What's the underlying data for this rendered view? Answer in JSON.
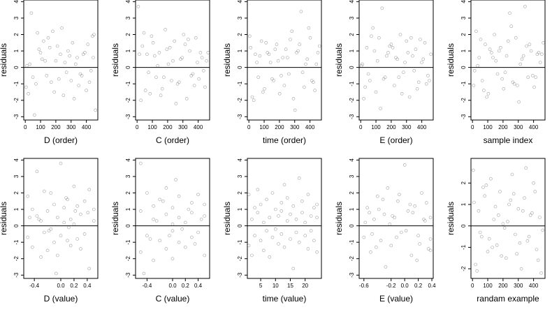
{
  "chart_data": [
    {
      "type": "scatter",
      "panel": 1,
      "xlabel": "D (order)",
      "ylabel": "residuals",
      "xlim": [
        -10,
        475
      ],
      "ylim": [
        -3.2,
        4.1
      ],
      "xticks": [
        0,
        100,
        200,
        300,
        400
      ],
      "xticklabels": [
        "0",
        "100",
        "200",
        "300",
        "400"
      ],
      "yticks": [
        -3,
        -2,
        -1,
        0,
        1,
        2,
        3,
        4
      ],
      "yticklabels": [
        "-3",
        "-2",
        "-1",
        "0",
        "1",
        "2",
        "3",
        "4"
      ],
      "hline": 0,
      "x": [
        5,
        20,
        40,
        60,
        80,
        100,
        120,
        140,
        160,
        180,
        200,
        220,
        240,
        260,
        280,
        300,
        320,
        340,
        360,
        380,
        400,
        420,
        440,
        460,
        30,
        70,
        110,
        150,
        190,
        230,
        270,
        310,
        350,
        390,
        430,
        450,
        10,
        50,
        90,
        130,
        170,
        210,
        250,
        290,
        330,
        370,
        410,
        445
      ],
      "y": [
        -1.2,
        -1.6,
        3.3,
        -2.9,
        2.1,
        0.9,
        1.6,
        -0.5,
        1.2,
        2.2,
        0.4,
        -0.7,
        2.4,
        0.3,
        1.0,
        -0.8,
        -1.9,
        0.6,
        -0.4,
        0.8,
        -1.4,
        -0.9,
        1.9,
        -2.6,
        0.2,
        -1.0,
        0.5,
        1.8,
        -1.5,
        0.8,
        -0.3,
        1.5,
        -1.1,
        0.9,
        -0.2,
        2.0,
        0.1,
        -0.6,
        1.1,
        0.4,
        -0.9,
        1.3,
        -1.7,
        0.7,
        0.2,
        -0.5,
        1.4,
        0.6
      ]
    },
    {
      "type": "scatter",
      "panel": 2,
      "xlabel": "C (order)",
      "ylabel": "residuals",
      "xlim": [
        -10,
        475
      ],
      "ylim": [
        -3.2,
        4.1
      ],
      "xticks": [
        0,
        100,
        200,
        300,
        400
      ],
      "xticklabels": [
        "0",
        "100",
        "200",
        "300",
        "400"
      ],
      "yticks": [
        -3,
        -2,
        -1,
        0,
        1,
        2,
        3,
        4
      ],
      "yticklabels": [
        "-3",
        "-2",
        "-1",
        "0",
        "1",
        "2",
        "3",
        "4"
      ],
      "hline": 0,
      "x": [
        8,
        25,
        45,
        65,
        85,
        105,
        125,
        145,
        165,
        185,
        205,
        225,
        245,
        265,
        285,
        305,
        325,
        345,
        365,
        385,
        405,
        425,
        445,
        465,
        35,
        75,
        115,
        155,
        195,
        235,
        275,
        315,
        355,
        395,
        435,
        15,
        55,
        95,
        135,
        175,
        215,
        255,
        295,
        335,
        375,
        415,
        455
      ],
      "y": [
        3.7,
        -2.0,
        2.1,
        0.8,
        -1.6,
        1.5,
        -0.6,
        0.9,
        -1.3,
        2.3,
        0.2,
        -0.8,
        1.6,
        -1.0,
        0.5,
        2.0,
        -1.9,
        1.0,
        -0.4,
        1.8,
        -0.7,
        0.6,
        -1.2,
        0.9,
        1.3,
        -0.3,
        0.7,
        -1.7,
        1.1,
        0.4,
        -0.9,
        1.4,
        -0.5,
        0.3,
        -0.2,
        0.8,
        -1.4,
        1.9,
        0.1,
        -0.6,
        1.2,
        -2.2,
        0.6,
        1.7,
        -1.1,
        0.9,
        0.4
      ]
    },
    {
      "type": "scatter",
      "panel": 3,
      "xlabel": "time (order)",
      "ylabel": "residuals",
      "xlim": [
        -10,
        475
      ],
      "ylim": [
        -3.2,
        4.1
      ],
      "xticks": [
        0,
        100,
        200,
        300,
        400
      ],
      "xticklabels": [
        "0",
        "100",
        "200",
        "300",
        "400"
      ],
      "yticks": [
        -3,
        -2,
        -1,
        0,
        1,
        2,
        3,
        4
      ],
      "yticklabels": [
        "-3",
        "-2",
        "-1",
        "0",
        "1",
        "2",
        "3",
        "4"
      ],
      "hline": 0,
      "x": [
        5,
        22,
        42,
        62,
        82,
        102,
        122,
        142,
        162,
        182,
        202,
        222,
        242,
        262,
        282,
        302,
        322,
        342,
        362,
        382,
        402,
        422,
        442,
        462,
        32,
        72,
        112,
        152,
        192,
        232,
        272,
        312,
        352,
        392,
        432,
        12,
        52,
        92,
        132,
        172,
        212,
        252,
        292,
        332,
        372,
        412,
        452
      ],
      "y": [
        1.9,
        -1.8,
        0.8,
        -0.6,
        1.6,
        -1.3,
        0.9,
        0.3,
        -0.8,
        1.4,
        -1.6,
        0.6,
        1.1,
        -0.4,
        2.2,
        -2.6,
        1.0,
        3.4,
        -1.2,
        0.5,
        1.8,
        -0.9,
        0.2,
        1.3,
        -2.0,
        0.7,
        1.5,
        -0.7,
        0.4,
        -1.1,
        1.7,
        0.9,
        -0.3,
        2.4,
        -1.4,
        1.2,
        0.3,
        -1.5,
        0.8,
        1.1,
        -0.5,
        0.6,
        -1.9,
        1.4,
        0.2,
        -0.8,
        0.9
      ]
    },
    {
      "type": "scatter",
      "panel": 4,
      "xlabel": "E (order)",
      "ylabel": "residuals",
      "xlim": [
        -10,
        475
      ],
      "ylim": [
        -3.2,
        4.1
      ],
      "xticks": [
        0,
        100,
        200,
        300,
        400
      ],
      "xticklabels": [
        "0",
        "100",
        "200",
        "300",
        "400"
      ],
      "yticks": [
        -3,
        -2,
        -1,
        0,
        1,
        2,
        3,
        4
      ],
      "yticklabels": [
        "-3",
        "-2",
        "-1",
        "0",
        "1",
        "2",
        "3",
        "4"
      ],
      "hline": 0,
      "x": [
        5,
        20,
        40,
        60,
        80,
        100,
        120,
        140,
        160,
        180,
        200,
        220,
        240,
        260,
        280,
        300,
        320,
        340,
        360,
        380,
        400,
        420,
        440,
        460,
        30,
        70,
        110,
        150,
        190,
        230,
        270,
        310,
        350,
        390,
        430,
        10,
        50,
        90,
        130,
        170,
        210,
        250,
        290,
        330,
        370,
        410,
        450
      ],
      "y": [
        0.1,
        -1.9,
        1.2,
        -0.8,
        2.4,
        -1.5,
        1.8,
        3.6,
        -0.6,
        0.9,
        1.4,
        -1.1,
        0.5,
        2.0,
        -0.3,
        1.6,
        -1.8,
        0.7,
        1.1,
        -0.9,
        0.3,
        1.5,
        -0.5,
        0.8,
        -1.2,
        1.9,
        0.4,
        -0.7,
        1.3,
        0.6,
        -1.6,
        0.9,
        -0.2,
        1.7,
        -1.0,
        0.2,
        -0.4,
        1.0,
        -2.5,
        0.7,
        1.2,
        -0.6,
        0.3,
        1.8,
        -1.3,
        0.5,
        -0.8
      ]
    },
    {
      "type": "scatter",
      "panel": 5,
      "xlabel": "sample index",
      "ylabel": "residuals",
      "xlim": [
        -10,
        475
      ],
      "ylim": [
        -3.2,
        4.1
      ],
      "xticks": [
        0,
        100,
        200,
        300,
        400
      ],
      "xticklabels": [
        "0",
        "100",
        "200",
        "300",
        "400"
      ],
      "yticks": [
        -3,
        -2,
        -1,
        0,
        1,
        2,
        3,
        4
      ],
      "yticklabels": [
        "-3",
        "-2",
        "-1",
        "0",
        "1",
        "2",
        "3",
        "4"
      ],
      "hline": 0,
      "x": [
        8,
        24,
        44,
        64,
        84,
        104,
        124,
        144,
        164,
        184,
        204,
        224,
        244,
        264,
        284,
        304,
        324,
        344,
        364,
        384,
        404,
        424,
        444,
        464,
        34,
        74,
        114,
        154,
        194,
        234,
        274,
        314,
        354,
        394,
        434,
        14,
        54,
        94,
        134,
        174,
        214,
        254,
        294,
        334,
        374,
        414,
        454
      ],
      "y": [
        -1.1,
        2.2,
        0.6,
        -0.8,
        1.4,
        -1.6,
        0.9,
        2.0,
        -0.4,
        1.2,
        -1.3,
        0.7,
        3.3,
        -0.9,
        1.8,
        -2.1,
        0.5,
        3.7,
        -0.6,
        1.0,
        -1.2,
        0.8,
        0.3,
        1.5,
        0.1,
        -1.4,
        1.1,
        0.4,
        -0.7,
        1.6,
        -1.0,
        0.2,
        1.3,
        -0.5,
        0.9,
        -0.2,
        1.7,
        -1.8,
        0.6,
        1.0,
        -0.3,
        2.5,
        -1.1,
        0.7,
        1.4,
        -0.6,
        0.8
      ]
    },
    {
      "type": "scatter",
      "panel": 6,
      "xlabel": "D (value)",
      "ylabel": "residuals",
      "xlim": [
        -0.56,
        0.56
      ],
      "ylim": [
        -3.2,
        4.1
      ],
      "xticks": [
        -0.4,
        0.0,
        0.2,
        0.4
      ],
      "xticklabels": [
        "-0.4",
        "0.0",
        "0.2",
        "0.4"
      ],
      "yticks": [
        -3,
        -2,
        -1,
        0,
        1,
        2,
        3,
        4
      ],
      "yticklabels": [
        "-3",
        "-2",
        "-1",
        "0",
        "1",
        "2",
        "3",
        "4"
      ],
      "hline": 0,
      "x": [
        -0.5,
        -0.5,
        -0.43,
        -0.43,
        -0.36,
        -0.36,
        -0.3,
        -0.3,
        -0.25,
        -0.25,
        -0.2,
        -0.2,
        -0.15,
        -0.15,
        -0.1,
        -0.1,
        -0.05,
        -0.05,
        0.0,
        0.0,
        0.05,
        0.05,
        0.1,
        0.1,
        0.15,
        0.15,
        0.2,
        0.2,
        0.25,
        0.25,
        0.3,
        0.3,
        0.36,
        0.36,
        0.43,
        0.43,
        0.5,
        0.5,
        -0.33,
        0.08,
        -0.18,
        0.22,
        -0.07,
        0.12,
        0.41,
        -0.47
      ],
      "y": [
        1.8,
        -0.7,
        1.0,
        -1.3,
        3.3,
        0.6,
        -1.9,
        0.3,
        2.1,
        -0.4,
        0.9,
        -1.5,
        2.0,
        -0.2,
        1.3,
        -1.0,
        0.5,
        -1.8,
        3.8,
        -0.6,
        1.1,
        0.2,
        1.6,
        -0.9,
        0.4,
        -1.2,
        2.4,
        0.1,
        -0.8,
        1.2,
        0.7,
        -1.4,
        1.5,
        -0.5,
        2.2,
        -2.6,
        1.0,
        0.3,
        0.4,
        1.7,
        -0.3,
        0.9,
        -2.9,
        -0.1,
        0.8,
        0.5
      ]
    },
    {
      "type": "scatter",
      "panel": 7,
      "xlabel": "C (value)",
      "ylabel": "residuals",
      "xlim": [
        -0.58,
        0.58
      ],
      "ylim": [
        -3.2,
        4.1
      ],
      "xticks": [
        -0.4,
        0.0,
        0.2,
        0.4
      ],
      "xticklabels": [
        "-0.4",
        "0.0",
        "0.2",
        "0.4"
      ],
      "yticks": [
        -3,
        -2,
        -1,
        0,
        1,
        2,
        3,
        4
      ],
      "yticklabels": [
        "-3",
        "-2",
        "-1",
        "0",
        "1",
        "2",
        "3",
        "4"
      ],
      "hline": 0,
      "x": [
        -0.5,
        -0.5,
        -0.5,
        -0.4,
        -0.4,
        -0.3,
        -0.3,
        -0.3,
        -0.2,
        -0.2,
        -0.1,
        -0.1,
        -0.1,
        0.0,
        0.0,
        0.0,
        0.1,
        0.1,
        0.1,
        0.2,
        0.2,
        0.3,
        0.3,
        0.3,
        0.4,
        0.4,
        0.5,
        0.5,
        0.5,
        -0.45,
        -0.25,
        -0.05,
        0.05,
        0.15,
        0.25,
        0.35,
        0.45,
        -0.35,
        -0.15,
        0.0
      ],
      "y": [
        3.8,
        -1.6,
        0.9,
        2.0,
        -0.6,
        1.2,
        -2.1,
        0.4,
        1.6,
        -0.9,
        0.7,
        -1.4,
        2.3,
        -0.3,
        1.1,
        -2.0,
        0.5,
        -1.0,
        1.8,
        0.2,
        -1.3,
        1.4,
        -0.7,
        0.8,
        1.9,
        -0.4,
        0.6,
        -1.8,
        1.3,
        -2.9,
        0.3,
        -0.6,
        2.8,
        -0.2,
        1.0,
        -1.1,
        0.4,
        -0.8,
        1.5,
        0.1
      ]
    },
    {
      "type": "scatter",
      "panel": 8,
      "xlabel": "time (value)",
      "ylabel": "residuals",
      "xlim": [
        0.5,
        25.5
      ],
      "ylim": [
        -3.2,
        4.1
      ],
      "xticks": [
        5,
        10,
        15,
        20
      ],
      "xticklabels": [
        "5",
        "10",
        "15",
        "20"
      ],
      "yticks": [
        -3,
        -2,
        -1,
        0,
        1,
        2,
        3,
        4
      ],
      "yticklabels": [
        "-3",
        "-2",
        "-1",
        "0",
        "1",
        "2",
        "3",
        "4"
      ],
      "hline": 0,
      "x": [
        1,
        1,
        2,
        2,
        3,
        3,
        4,
        4,
        5,
        5,
        6,
        6,
        7,
        7,
        8,
        8,
        9,
        9,
        10,
        10,
        11,
        11,
        12,
        12,
        12,
        13,
        13,
        14,
        14,
        15,
        15,
        16,
        16,
        17,
        17,
        18,
        18,
        19,
        19,
        20,
        20,
        21,
        21,
        22,
        22,
        23,
        23,
        24,
        24,
        24
      ],
      "y": [
        1.9,
        -1.2,
        -1.8,
        0.4,
        1.1,
        -0.6,
        0.8,
        2.2,
        -0.9,
        1.3,
        0.2,
        -1.5,
        1.6,
        -0.3,
        0.5,
        -1.9,
        2.0,
        -0.7,
        1.0,
        -0.2,
        0.6,
        -1.1,
        1.4,
        -0.5,
        0.9,
        2.5,
        -1.3,
        0.3,
        1.7,
        -0.8,
        0.7,
        1.2,
        -2.6,
        0.4,
        -0.4,
        2.9,
        -1.0,
        0.8,
        1.5,
        -0.6,
        0.2,
        1.9,
        -1.4,
        0.6,
        -0.3,
        1.1,
        -0.9,
        0.5,
        -1.6,
        1.3
      ]
    },
    {
      "type": "scatter",
      "panel": 9,
      "xlabel": "E (value)",
      "ylabel": "residuals",
      "xlim": [
        -0.67,
        0.42
      ],
      "ylim": [
        -3.2,
        4.1
      ],
      "xticks": [
        -0.6,
        -0.2,
        0.0,
        0.2,
        0.4
      ],
      "xticklabels": [
        "-0.6",
        "-0.2",
        "0.0",
        "0.2",
        "0.4"
      ],
      "yticks": [
        -3,
        -2,
        -1,
        0,
        1,
        2,
        3,
        4
      ],
      "yticklabels": [
        "-3",
        "-2",
        "-1",
        "0",
        "1",
        "2",
        "3",
        "4"
      ],
      "hline": 0,
      "x": [
        -0.6,
        -0.55,
        -0.5,
        -0.45,
        -0.4,
        -0.35,
        -0.3,
        -0.25,
        -0.2,
        -0.15,
        -0.1,
        -0.05,
        0.0,
        0.05,
        0.1,
        0.15,
        0.2,
        0.25,
        0.3,
        0.35,
        0.38,
        -0.58,
        -0.48,
        -0.38,
        -0.28,
        -0.18,
        -0.08,
        0.02,
        0.12,
        0.22,
        0.32,
        0.38,
        -0.52,
        -0.42,
        -0.32,
        -0.22,
        -0.12,
        0.08,
        0.18,
        0.28,
        0.38
      ],
      "y": [
        -0.7,
        1.1,
        -1.6,
        0.4,
        1.8,
        -0.9,
        0.7,
        2.3,
        -1.2,
        0.5,
        1.5,
        -0.4,
        3.7,
        0.9,
        -1.8,
        1.2,
        -0.6,
        2.0,
        0.3,
        -1.4,
        -0.8,
        0.2,
        -0.5,
        1.0,
        -2.5,
        0.6,
        1.9,
        -0.3,
        0.8,
        -1.1,
        1.4,
        0.5,
        0.8,
        -1.3,
        1.6,
        0.1,
        -0.7,
        1.3,
        -2.1,
        0.4,
        -1.5
      ]
    },
    {
      "type": "scatter",
      "panel": 10,
      "xlabel": "randam example",
      "ylabel": "residuals",
      "xlim": [
        -10,
        475
      ],
      "ylim": [
        -2.45,
        3.15
      ],
      "xticks": [
        0,
        100,
        200,
        300,
        400
      ],
      "xticklabels": [
        "0",
        "100",
        "200",
        "300",
        "400"
      ],
      "yticks": [
        -2,
        -1,
        0,
        1,
        2
      ],
      "yticklabels": [
        "-2",
        "-1",
        "0",
        "1",
        "2"
      ],
      "hline": 0,
      "x": [
        5,
        20,
        40,
        60,
        80,
        100,
        120,
        140,
        160,
        180,
        200,
        220,
        240,
        260,
        280,
        300,
        320,
        340,
        360,
        380,
        400,
        420,
        440,
        460,
        30,
        70,
        110,
        150,
        190,
        230,
        270,
        310,
        350,
        390,
        430,
        10,
        50,
        90,
        130,
        170,
        210,
        250,
        290,
        330,
        370,
        410,
        450
      ],
      "y": [
        2.6,
        -1.8,
        0.7,
        -0.5,
        1.4,
        -1.2,
        2.2,
        0.3,
        -0.9,
        1.6,
        0.1,
        -1.5,
        1.0,
        2.4,
        -0.4,
        0.8,
        -2.0,
        1.3,
        -0.7,
        0.5,
        2.0,
        -1.1,
        0.4,
        -0.2,
        -2.1,
        1.8,
        -0.6,
        0.9,
        -1.4,
        0.2,
        1.5,
        -0.8,
        2.7,
        0.6,
        -1.6,
        1.1,
        -0.3,
        1.9,
        -1.0,
        0.5,
        -0.1,
        1.2,
        -1.3,
        0.7,
        -0.5,
        1.6,
        -2.2
      ]
    }
  ]
}
